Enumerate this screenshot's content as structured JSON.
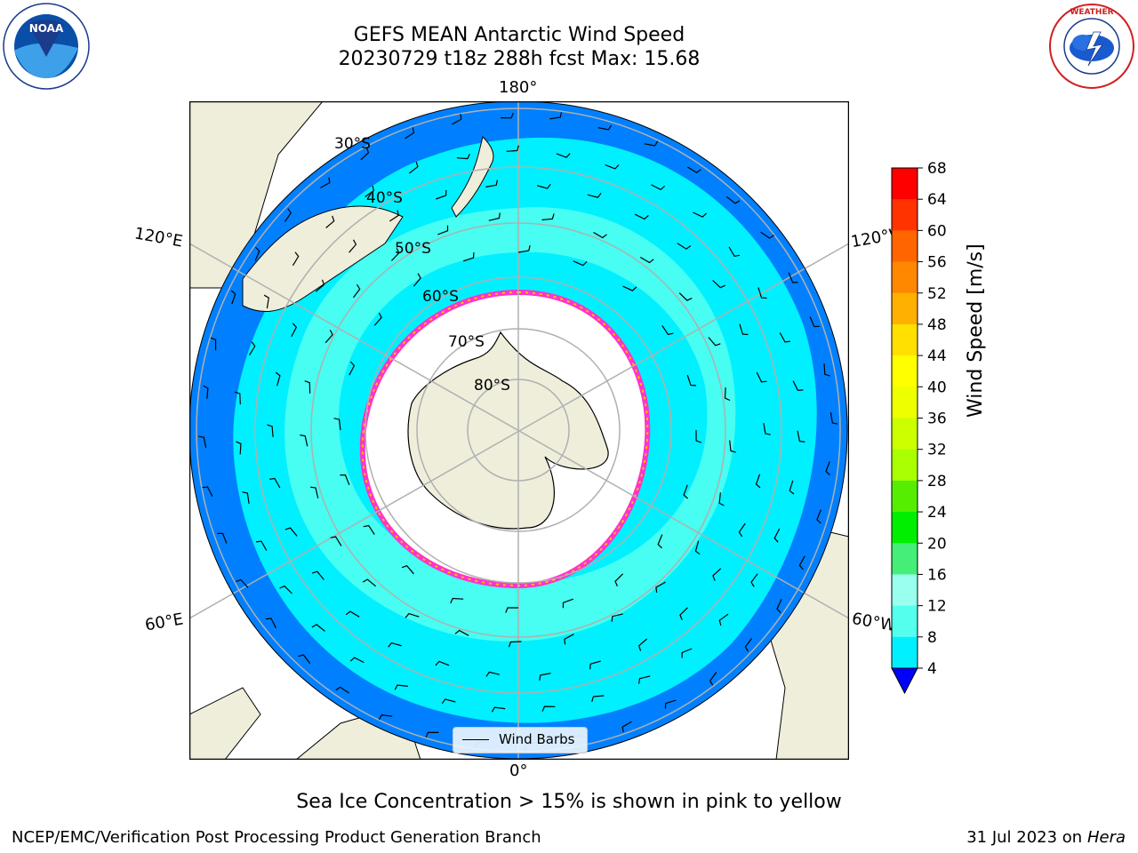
{
  "title": {
    "line1": "GEFS MEAN Antarctic Wind Speed",
    "line2": "20230729 t18z 288h fcst   Max: 15.68"
  },
  "logos": {
    "left": "NOAA",
    "right": "NATIONAL WEATHER SERVICE"
  },
  "map": {
    "projection": "south-polar-stereographic",
    "meridian_labels": [
      "180°",
      "120°E",
      "120°W",
      "60°E",
      "60°W",
      "0°"
    ],
    "parallel_labels": [
      "30°S",
      "40°S",
      "50°S",
      "60°S",
      "70°S",
      "80°S"
    ],
    "legend_label": "Wind Barbs"
  },
  "colorbar": {
    "title": "Wind Speed [m/s]",
    "ticks": [
      "68",
      "64",
      "60",
      "56",
      "52",
      "48",
      "44",
      "40",
      "36",
      "32",
      "28",
      "24",
      "20",
      "16",
      "12",
      "8",
      "4"
    ],
    "colors": [
      "#ff0000",
      "#ff3300",
      "#ff6600",
      "#ff8800",
      "#ffb000",
      "#ffe000",
      "#ffff00",
      "#eeff00",
      "#ccff00",
      "#aaff00",
      "#55ee00",
      "#00ee00",
      "#44ee77",
      "#99ffee",
      "#55ffee",
      "#00f0ff",
      "#0080ff"
    ],
    "extend_color": "#0000ff"
  },
  "sea_ice_note": "Sea Ice Concentration > 15% is shown in pink to yellow",
  "credit": "NCEP/EMC/Verification Post Processing Product Generation Branch",
  "date_stamp": {
    "date": "31 Jul 2023 on ",
    "host": "Hera"
  }
}
